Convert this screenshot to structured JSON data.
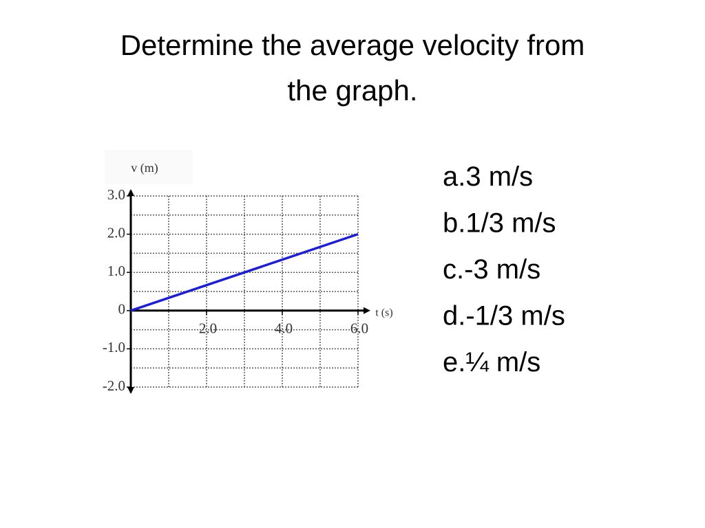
{
  "slide": {
    "title_lines": [
      "Determine the average velocity from",
      "the graph."
    ],
    "options": [
      "a.3 m/s",
      "b.1/3 m/s",
      "c.-3 m/s",
      "d.-1/3 m/s",
      "e.¼ m/s"
    ]
  },
  "chart_data": {
    "type": "line",
    "y_label": "v (m)",
    "x_label": "t (s)",
    "x": [
      0,
      6
    ],
    "series": [
      {
        "color": "#1f1fcc",
        "values": [
          0,
          2
        ]
      }
    ],
    "xlim": [
      0,
      6
    ],
    "ylim": [
      -2,
      3
    ],
    "xticks": [
      {
        "value": 2,
        "label": "2.0"
      },
      {
        "value": 4,
        "label": "4.0"
      },
      {
        "value": 6,
        "label": "6.0"
      }
    ],
    "yticks": [
      {
        "value": 3,
        "label": "3.0"
      },
      {
        "value": 2,
        "label": "2.0"
      },
      {
        "value": 1,
        "label": "1.0"
      },
      0,
      {
        "value": -1,
        "label": "-1.0"
      },
      {
        "value": -2,
        "label": "-2.0"
      }
    ],
    "grid": true,
    "minor_grid": {
      "x": 1,
      "y": 0.5
    }
  }
}
